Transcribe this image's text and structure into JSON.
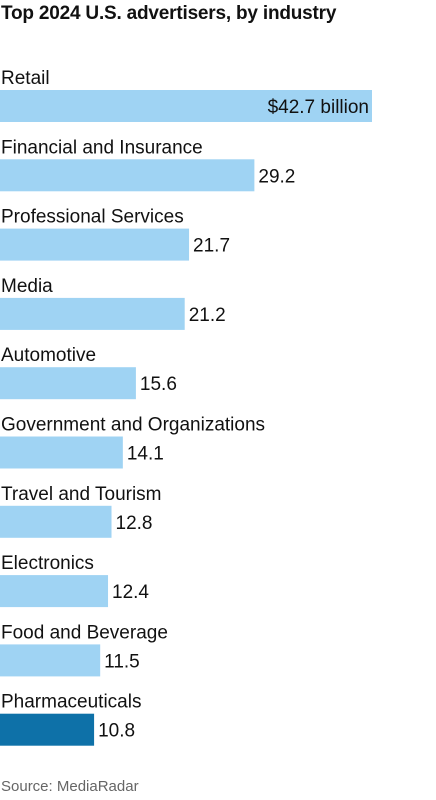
{
  "chart_data": {
    "type": "bar",
    "orientation": "horizontal",
    "title": "Top 2024 U.S. advertisers, by industry",
    "categories": [
      "Retail",
      "Financial and Insurance",
      "Professional Services",
      "Media",
      "Automotive",
      "Government and Organizations",
      "Travel and Tourism",
      "Electronics",
      "Food and Beverage",
      "Pharmaceuticals"
    ],
    "values": [
      42.7,
      29.2,
      21.7,
      21.2,
      15.6,
      14.1,
      12.8,
      12.4,
      11.5,
      10.8
    ],
    "value_labels": [
      "$42.7 billion",
      "29.2",
      "21.7",
      "21.2",
      "15.6",
      "14.1",
      "12.8",
      "12.4",
      "11.5",
      "10.8"
    ],
    "unit": "billion",
    "xlim": [
      0,
      42.7
    ],
    "grid": false,
    "legend": "none",
    "highlighted_category": "Pharmaceuticals",
    "colors": {
      "bar": "#9fd3f3",
      "highlight": "#0e71a8",
      "text": "#111111",
      "source": "#666666"
    },
    "source": "Source: MediaRadar"
  }
}
